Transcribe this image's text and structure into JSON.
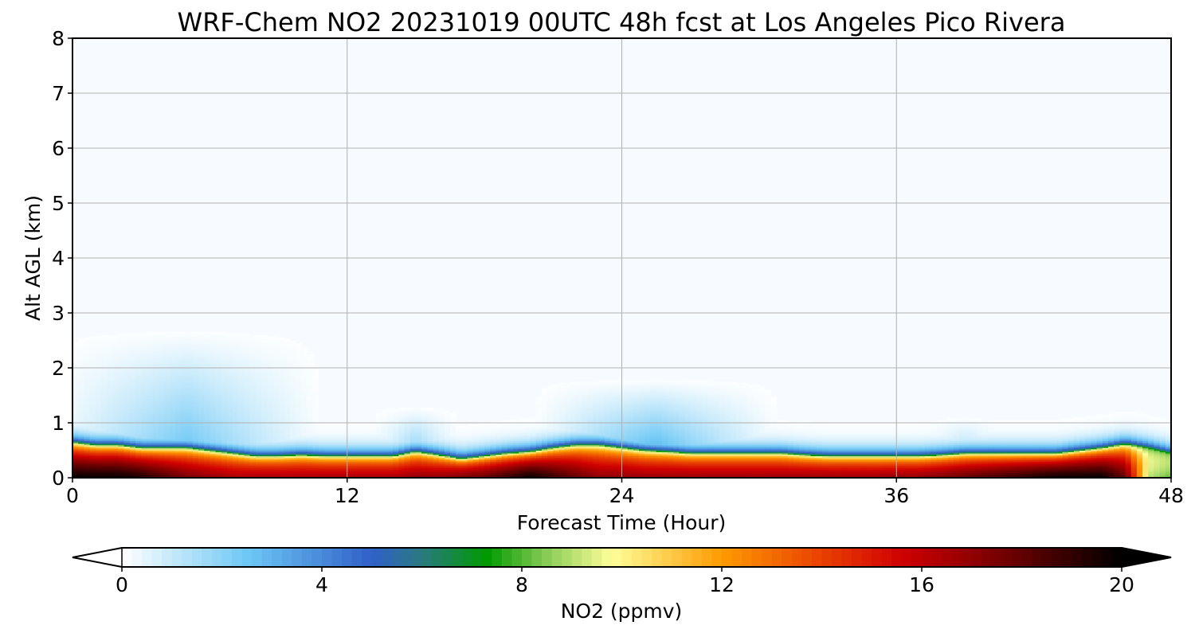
{
  "chart_data": {
    "type": "heatmap",
    "title": "WRF-Chem NO2  20231019 00UTC 48h fcst at Los Angeles Pico Rivera",
    "xlabel": "Forecast Time (Hour)",
    "ylabel": "Alt AGL (km)",
    "xlim": [
      0,
      48
    ],
    "ylim": [
      0,
      8
    ],
    "xticks": [
      0,
      12,
      24,
      36,
      48
    ],
    "yticks": [
      0,
      1,
      2,
      3,
      4,
      5,
      6,
      7,
      8
    ],
    "grid": true,
    "colorbar": {
      "label": "NO2  (ppmv)",
      "range": [
        0,
        20
      ],
      "ticks": [
        0,
        4,
        8,
        12,
        16,
        20
      ],
      "extend": "both",
      "orientation": "horizontal",
      "stops": [
        {
          "value": 0,
          "color": "#ffffff"
        },
        {
          "value": 2.5,
          "color": "#6ec8f5"
        },
        {
          "value": 5,
          "color": "#3060c8"
        },
        {
          "value": 6,
          "color": "#2a7a80"
        },
        {
          "value": 7.3,
          "color": "#009a00"
        },
        {
          "value": 8.4,
          "color": "#80c850"
        },
        {
          "value": 9.8,
          "color": "#ffff99"
        },
        {
          "value": 12,
          "color": "#ff9a00"
        },
        {
          "value": 14,
          "color": "#e84000"
        },
        {
          "value": 15.6,
          "color": "#d00000"
        },
        {
          "value": 17.5,
          "color": "#7a0000"
        },
        {
          "value": 20,
          "color": "#000000"
        }
      ]
    },
    "profile": {
      "hours": [
        0,
        1,
        2,
        3,
        4,
        5,
        6,
        7,
        8,
        9,
        10,
        11,
        12,
        13,
        14,
        15,
        16,
        17,
        18,
        19,
        20,
        21,
        22,
        23,
        24,
        25,
        26,
        27,
        28,
        29,
        30,
        31,
        32,
        33,
        34,
        35,
        36,
        37,
        38,
        39,
        40,
        41,
        42,
        43,
        44,
        45,
        46,
        47,
        48
      ],
      "surface_value": [
        20,
        20,
        20,
        19.5,
        18.5,
        17.5,
        17,
        16.5,
        16.5,
        16.5,
        16.5,
        16.5,
        16.5,
        16.5,
        16.5,
        17,
        17,
        17.5,
        18,
        19,
        20,
        19,
        18,
        17,
        17,
        16.8,
        16.8,
        16.8,
        16.8,
        16.8,
        16.8,
        16.8,
        16.8,
        16.8,
        16.8,
        16.8,
        17,
        17,
        17.5,
        18,
        18.5,
        19,
        19.5,
        20,
        20,
        20,
        18,
        9,
        8
      ],
      "pbl_height_km": [
        0.65,
        0.6,
        0.6,
        0.55,
        0.55,
        0.55,
        0.5,
        0.45,
        0.4,
        0.4,
        0.42,
        0.4,
        0.4,
        0.4,
        0.4,
        0.48,
        0.42,
        0.35,
        0.4,
        0.45,
        0.48,
        0.55,
        0.6,
        0.6,
        0.55,
        0.5,
        0.48,
        0.45,
        0.45,
        0.45,
        0.45,
        0.45,
        0.42,
        0.4,
        0.4,
        0.4,
        0.4,
        0.4,
        0.42,
        0.45,
        0.45,
        0.45,
        0.45,
        0.45,
        0.5,
        0.55,
        0.62,
        0.55,
        0.45
      ],
      "upper_plume": [
        {
          "hour_start": 0,
          "hour_end": 10,
          "top_km": 2.7,
          "peak_value": 2.5
        },
        {
          "hour_start": 14,
          "hour_end": 16,
          "top_km": 1.3,
          "peak_value": 2.0
        },
        {
          "hour_start": 21,
          "hour_end": 30,
          "top_km": 1.8,
          "peak_value": 3.0
        },
        {
          "hour_start": 38,
          "hour_end": 40,
          "top_km": 1.1,
          "peak_value": 1.5
        }
      ]
    }
  }
}
